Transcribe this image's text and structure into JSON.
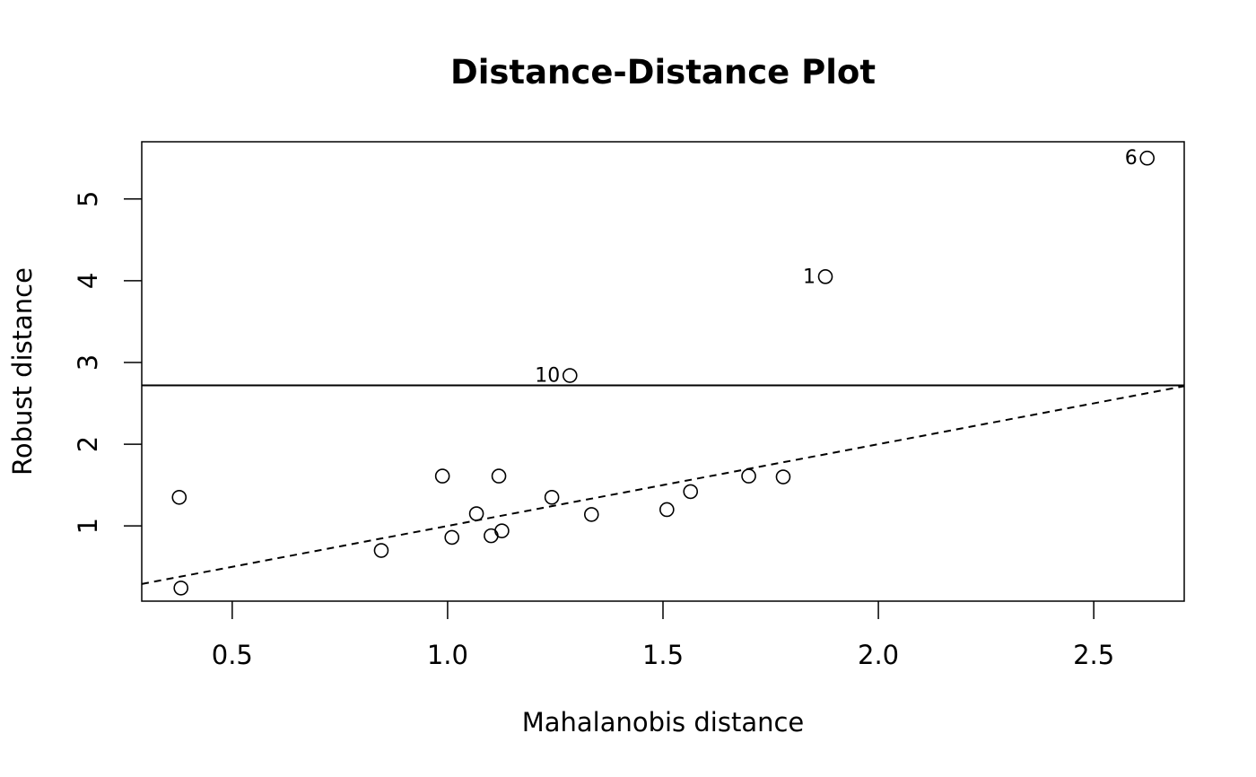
{
  "chart_data": {
    "type": "scatter",
    "title": "Distance-Distance Plot",
    "xlabel": "Mahalanobis distance",
    "ylabel": "Robust distance",
    "xlim": [
      0.29,
      2.71
    ],
    "ylim": [
      0.08,
      5.7
    ],
    "xticks": [
      0.5,
      1.0,
      1.5,
      2.0,
      2.5
    ],
    "xtick_labels": [
      "0.5",
      "1.0",
      "1.5",
      "2.0",
      "2.5"
    ],
    "yticks": [
      1,
      2,
      3,
      4,
      5
    ],
    "ytick_labels": [
      "1",
      "2",
      "3",
      "4",
      "5"
    ],
    "grid": false,
    "cutoff_hline": 2.72,
    "identity_line": {
      "style": "dashed",
      "slope": 1,
      "intercept": 0
    },
    "points": [
      {
        "x": 1.877,
        "y": 4.05,
        "label": "1"
      },
      {
        "x": 2.624,
        "y": 5.5,
        "label": "6"
      },
      {
        "x": 1.284,
        "y": 2.84,
        "label": "10"
      },
      {
        "x": 0.377,
        "y": 1.35
      },
      {
        "x": 0.381,
        "y": 0.24
      },
      {
        "x": 0.846,
        "y": 0.7
      },
      {
        "x": 0.988,
        "y": 1.61
      },
      {
        "x": 1.01,
        "y": 0.86
      },
      {
        "x": 1.067,
        "y": 1.15
      },
      {
        "x": 1.101,
        "y": 0.88
      },
      {
        "x": 1.119,
        "y": 1.61
      },
      {
        "x": 1.126,
        "y": 0.94
      },
      {
        "x": 1.242,
        "y": 1.35
      },
      {
        "x": 1.334,
        "y": 1.14
      },
      {
        "x": 1.509,
        "y": 1.2
      },
      {
        "x": 1.564,
        "y": 1.42
      },
      {
        "x": 1.699,
        "y": 1.61
      },
      {
        "x": 1.779,
        "y": 1.6
      }
    ]
  }
}
